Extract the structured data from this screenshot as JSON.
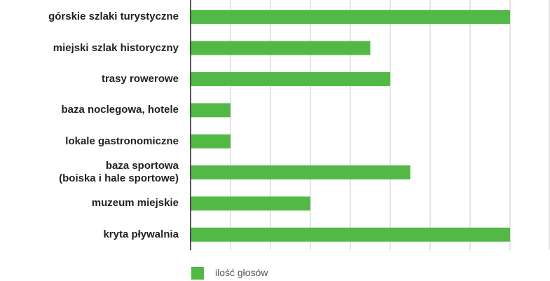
{
  "chart_data": {
    "type": "bar",
    "orientation": "horizontal",
    "categories": [
      "górskie szlaki turystyczne",
      "miejski szlak historyczny",
      "trasy rowerowe",
      "baza noclegowa, hotele",
      "lokale gastronomiczne",
      "baza sportowa\n(boiska i hale sportowe)",
      "muzeum miejskie",
      "kryta pływalnia"
    ],
    "series": [
      {
        "name": "ilość głosów",
        "color": "#52b947",
        "values": [
          8,
          4.5,
          5,
          1,
          1,
          5.5,
          3,
          8
        ]
      }
    ],
    "xlim": [
      0,
      9
    ],
    "xticks": [
      0,
      1,
      2,
      3,
      4,
      5,
      6,
      7,
      8,
      9
    ],
    "grid": true,
    "legend": "bottom"
  }
}
